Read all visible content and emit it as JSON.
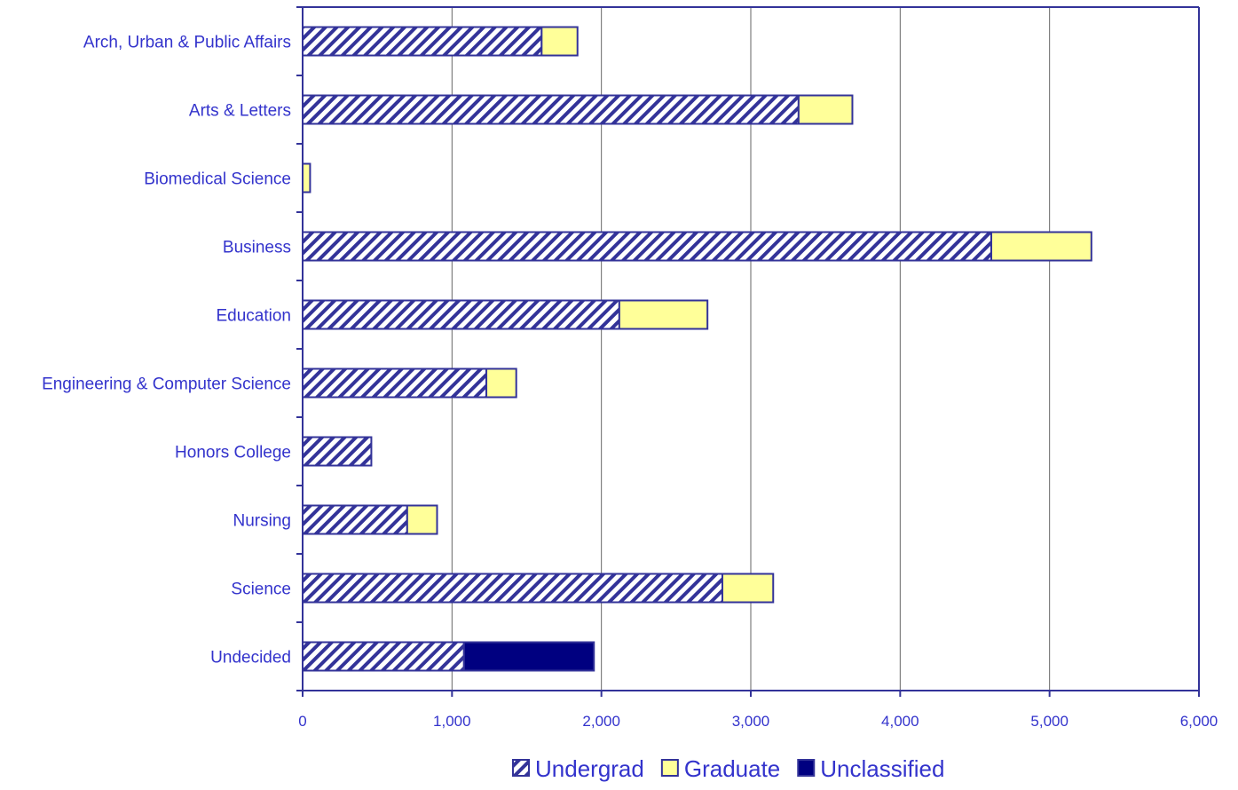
{
  "chart_data": {
    "type": "bar",
    "orientation": "horizontal",
    "stacked": true,
    "categories": [
      "Arch, Urban & Public Affairs",
      "Arts & Letters",
      "Biomedical Science",
      "Business",
      "Education",
      "Engineering & Computer Science",
      "Honors College",
      "Nursing",
      "Science",
      "Undecided"
    ],
    "series": [
      {
        "name": "Undergrad",
        "color": "#333399",
        "pattern": "diagonal-hatch",
        "values": [
          1600,
          3320,
          0,
          4610,
          2120,
          1230,
          460,
          700,
          2810,
          1080
        ]
      },
      {
        "name": "Graduate",
        "color": "#ffff99",
        "pattern": "solid",
        "values": [
          240,
          360,
          50,
          670,
          590,
          200,
          0,
          200,
          340,
          0
        ]
      },
      {
        "name": "Unclassified",
        "color": "#000080",
        "pattern": "solid",
        "values": [
          0,
          0,
          0,
          0,
          0,
          0,
          0,
          0,
          0,
          870
        ]
      }
    ],
    "xlim": [
      0,
      6000
    ],
    "x_ticks": [
      0,
      1000,
      2000,
      3000,
      4000,
      5000,
      6000
    ],
    "x_tick_labels": [
      "0",
      "1,000",
      "2,000",
      "3,000",
      "4,000",
      "5,000",
      "6,000"
    ],
    "grid": "vertical",
    "legend": "bottom",
    "title": "",
    "xlabel": "",
    "ylabel": ""
  },
  "colors": {
    "axis": "#333399",
    "grid": "#666666",
    "text": "#3333cc",
    "bar_outline": "#333399"
  }
}
